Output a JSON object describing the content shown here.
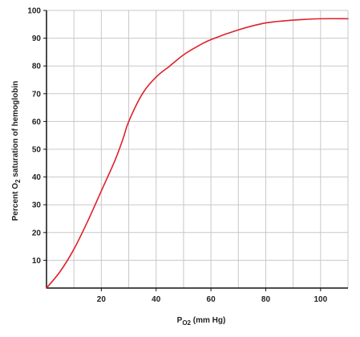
{
  "chart_data": {
    "type": "line",
    "title": "",
    "xlabel": "P",
    "xlabel_sub": "O2",
    "xlabel_unit": " (mm Hg)",
    "ylabel_pre": "Percent O",
    "ylabel_sub": "2",
    "ylabel_post": " saturation of hemoglobin",
    "xlim": [
      0,
      110
    ],
    "ylim": [
      0,
      100
    ],
    "x_ticks": [
      20,
      40,
      60,
      80,
      100
    ],
    "x_tick_labels": [
      "20",
      "40",
      "60",
      "80",
      "100"
    ],
    "y_ticks": [
      10,
      20,
      30,
      40,
      50,
      60,
      70,
      80,
      90,
      100
    ],
    "y_tick_labels": [
      "10",
      "20",
      "30",
      "40",
      "50",
      "60",
      "70",
      "80",
      "90",
      "100"
    ],
    "x_grid_step": 10,
    "grid": true,
    "line_color": "#e0202a",
    "series": [
      {
        "x": [
          0,
          5,
          10,
          15,
          20,
          25,
          28,
          30,
          35,
          40,
          45,
          50,
          55,
          60,
          70,
          80,
          90,
          100,
          110
        ],
        "values": [
          0,
          6,
          14,
          24,
          35,
          46,
          54,
          60,
          70,
          76,
          80,
          84,
          87,
          89.5,
          93,
          95.5,
          96.5,
          97,
          97
        ]
      }
    ]
  }
}
